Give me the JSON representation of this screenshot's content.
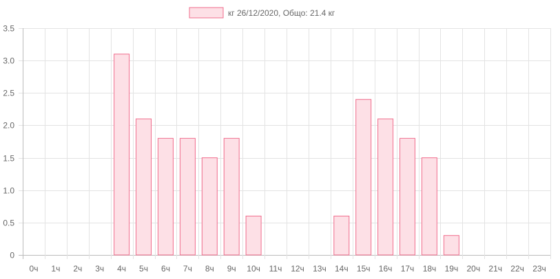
{
  "chart_data": {
    "type": "bar",
    "legend_label": "кг 26/12/2020, Общо: 21.4 кг",
    "legend_position": "top",
    "categories": [
      "0ч",
      "1ч",
      "2ч",
      "3ч",
      "4ч",
      "5ч",
      "6ч",
      "7ч",
      "8ч",
      "9ч",
      "10ч",
      "11ч",
      "12ч",
      "13ч",
      "14ч",
      "15ч",
      "16ч",
      "17ч",
      "18ч",
      "19ч",
      "20ч",
      "21ч",
      "22ч",
      "23ч"
    ],
    "values": [
      0,
      0,
      0,
      0,
      3.1,
      2.1,
      1.8,
      1.8,
      1.5,
      1.8,
      0.6,
      0,
      0,
      0,
      0.6,
      2.4,
      2.1,
      1.8,
      1.5,
      0.3,
      0,
      0,
      0,
      0
    ],
    "y_ticks": [
      "0",
      "0.5",
      "1.0",
      "1.5",
      "2.0",
      "2.5",
      "3.0",
      "3.5"
    ],
    "ylim": [
      0,
      3.5
    ],
    "grid": true,
    "colors": {
      "bar_fill": "#fde0e6",
      "bar_stroke": "#f06c8c",
      "grid": "#e3e3e3",
      "axis": "#bbbbbb"
    }
  }
}
